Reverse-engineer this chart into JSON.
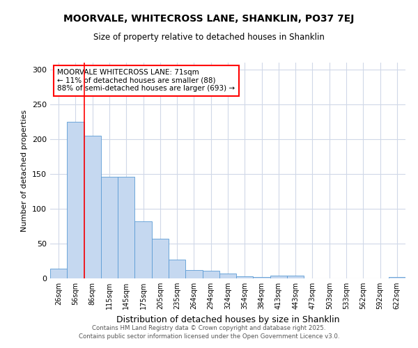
{
  "title1": "MOORVALE, WHITECROSS LANE, SHANKLIN, PO37 7EJ",
  "title2": "Size of property relative to detached houses in Shanklin",
  "xlabel": "Distribution of detached houses by size in Shanklin",
  "ylabel": "Number of detached properties",
  "bin_labels": [
    "26sqm",
    "56sqm",
    "86sqm",
    "115sqm",
    "145sqm",
    "175sqm",
    "205sqm",
    "235sqm",
    "264sqm",
    "294sqm",
    "324sqm",
    "354sqm",
    "384sqm",
    "413sqm",
    "443sqm",
    "473sqm",
    "503sqm",
    "533sqm",
    "562sqm",
    "592sqm",
    "622sqm"
  ],
  "bar_heights": [
    14,
    225,
    205,
    146,
    146,
    82,
    57,
    27,
    12,
    11,
    7,
    3,
    2,
    4,
    4,
    0,
    0,
    0,
    0,
    0,
    2
  ],
  "bar_color": "#c5d8f0",
  "bar_edge_color": "#5b9bd5",
  "background_color": "#ffffff",
  "grid_color": "#d0d8e8",
  "property_line_x": 1.5,
  "annotation_text": "MOORVALE WHITECROSS LANE: 71sqm\n← 11% of detached houses are smaller (88)\n88% of semi-detached houses are larger (693) →",
  "footer": "Contains HM Land Registry data © Crown copyright and database right 2025.\nContains public sector information licensed under the Open Government Licence v3.0.",
  "ylim": [
    0,
    310
  ],
  "yticks": [
    0,
    50,
    100,
    150,
    200,
    250,
    300
  ]
}
